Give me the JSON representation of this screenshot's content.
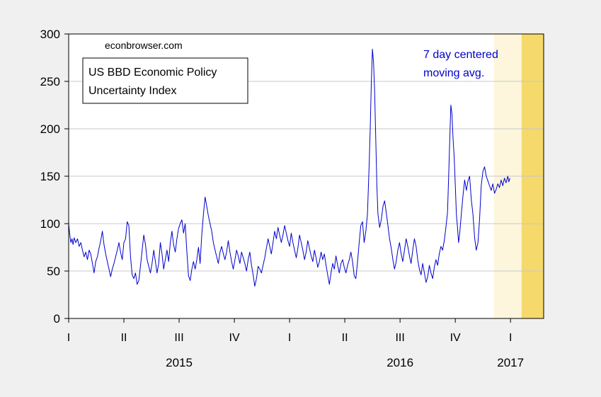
{
  "chart_data": {
    "type": "line",
    "title": "",
    "legend_box": [
      "US BBD Economic Policy",
      "Uncertainty Index"
    ],
    "legend_placement": "top-left",
    "source": "econbrowser.com",
    "annotation": [
      "7 day centered",
      "moving avg."
    ],
    "ylim": [
      0,
      300
    ],
    "yticks": [
      0,
      50,
      100,
      150,
      200,
      250,
      300
    ],
    "grid": true,
    "quarter_labels": [
      "I",
      "II",
      "III",
      "IV",
      "I",
      "II",
      "III",
      "IV",
      "I"
    ],
    "year_labels": [
      {
        "label": "2015",
        "quarter_index": 2
      },
      {
        "label": "2016",
        "quarter_index": 6
      },
      {
        "label": "2017",
        "quarter_index": 8
      }
    ],
    "x_range_quarters": [
      0,
      8.6
    ],
    "shaded_regions": [
      {
        "from_q": 7.7,
        "to_q": 8.2,
        "color": "#fdf6dc"
      },
      {
        "from_q": 8.2,
        "to_q": 8.6,
        "color": "#f5d96b"
      }
    ],
    "series": [
      {
        "color": "#0000cc",
        "points": [
          [
            0.0,
            100
          ],
          [
            0.02,
            88
          ],
          [
            0.04,
            80
          ],
          [
            0.06,
            84
          ],
          [
            0.08,
            78
          ],
          [
            0.1,
            85
          ],
          [
            0.13,
            80
          ],
          [
            0.16,
            84
          ],
          [
            0.19,
            76
          ],
          [
            0.22,
            80
          ],
          [
            0.25,
            72
          ],
          [
            0.28,
            65
          ],
          [
            0.31,
            70
          ],
          [
            0.34,
            62
          ],
          [
            0.37,
            72
          ],
          [
            0.4,
            68
          ],
          [
            0.43,
            58
          ],
          [
            0.46,
            48
          ],
          [
            0.49,
            60
          ],
          [
            0.52,
            65
          ],
          [
            0.55,
            74
          ],
          [
            0.58,
            82
          ],
          [
            0.61,
            92
          ],
          [
            0.64,
            78
          ],
          [
            0.67,
            68
          ],
          [
            0.7,
            60
          ],
          [
            0.73,
            52
          ],
          [
            0.76,
            44
          ],
          [
            0.79,
            52
          ],
          [
            0.82,
            58
          ],
          [
            0.85,
            65
          ],
          [
            0.88,
            72
          ],
          [
            0.91,
            80
          ],
          [
            0.94,
            70
          ],
          [
            0.97,
            62
          ],
          [
            1.0,
            80
          ],
          [
            1.03,
            84
          ],
          [
            1.06,
            102
          ],
          [
            1.09,
            98
          ],
          [
            1.12,
            65
          ],
          [
            1.15,
            46
          ],
          [
            1.18,
            42
          ],
          [
            1.21,
            48
          ],
          [
            1.24,
            36
          ],
          [
            1.27,
            40
          ],
          [
            1.3,
            55
          ],
          [
            1.33,
            72
          ],
          [
            1.36,
            88
          ],
          [
            1.39,
            78
          ],
          [
            1.42,
            62
          ],
          [
            1.45,
            55
          ],
          [
            1.48,
            48
          ],
          [
            1.51,
            58
          ],
          [
            1.54,
            72
          ],
          [
            1.57,
            60
          ],
          [
            1.6,
            48
          ],
          [
            1.63,
            58
          ],
          [
            1.66,
            80
          ],
          [
            1.69,
            68
          ],
          [
            1.72,
            52
          ],
          [
            1.75,
            62
          ],
          [
            1.78,
            72
          ],
          [
            1.81,
            60
          ],
          [
            1.84,
            80
          ],
          [
            1.87,
            92
          ],
          [
            1.9,
            78
          ],
          [
            1.93,
            70
          ],
          [
            1.96,
            84
          ],
          [
            1.99,
            95
          ],
          [
            2.02,
            100
          ],
          [
            2.05,
            104
          ],
          [
            2.08,
            90
          ],
          [
            2.11,
            100
          ],
          [
            2.14,
            70
          ],
          [
            2.17,
            45
          ],
          [
            2.2,
            40
          ],
          [
            2.23,
            52
          ],
          [
            2.26,
            60
          ],
          [
            2.29,
            52
          ],
          [
            2.32,
            62
          ],
          [
            2.35,
            75
          ],
          [
            2.38,
            58
          ],
          [
            2.41,
            88
          ],
          [
            2.44,
            110
          ],
          [
            2.47,
            128
          ],
          [
            2.5,
            118
          ],
          [
            2.53,
            108
          ],
          [
            2.56,
            100
          ],
          [
            2.59,
            92
          ],
          [
            2.62,
            80
          ],
          [
            2.65,
            72
          ],
          [
            2.68,
            65
          ],
          [
            2.71,
            58
          ],
          [
            2.74,
            70
          ],
          [
            2.77,
            76
          ],
          [
            2.8,
            68
          ],
          [
            2.83,
            62
          ],
          [
            2.86,
            70
          ],
          [
            2.89,
            82
          ],
          [
            2.92,
            70
          ],
          [
            2.95,
            60
          ],
          [
            2.98,
            52
          ],
          [
            3.01,
            62
          ],
          [
            3.04,
            72
          ],
          [
            3.07,
            66
          ],
          [
            3.1,
            58
          ],
          [
            3.13,
            70
          ],
          [
            3.16,
            64
          ],
          [
            3.19,
            58
          ],
          [
            3.22,
            50
          ],
          [
            3.25,
            62
          ],
          [
            3.28,
            70
          ],
          [
            3.31,
            56
          ],
          [
            3.34,
            46
          ],
          [
            3.37,
            34
          ],
          [
            3.4,
            42
          ],
          [
            3.43,
            55
          ],
          [
            3.46,
            52
          ],
          [
            3.49,
            48
          ],
          [
            3.52,
            56
          ],
          [
            3.55,
            64
          ],
          [
            3.58,
            74
          ],
          [
            3.61,
            84
          ],
          [
            3.64,
            76
          ],
          [
            3.67,
            68
          ],
          [
            3.7,
            80
          ],
          [
            3.73,
            92
          ],
          [
            3.76,
            84
          ],
          [
            3.79,
            96
          ],
          [
            3.82,
            88
          ],
          [
            3.85,
            80
          ],
          [
            3.88,
            88
          ],
          [
            3.91,
            98
          ],
          [
            3.94,
            90
          ],
          [
            3.97,
            82
          ],
          [
            4.0,
            76
          ],
          [
            4.03,
            90
          ],
          [
            4.06,
            80
          ],
          [
            4.09,
            72
          ],
          [
            4.12,
            64
          ],
          [
            4.15,
            74
          ],
          [
            4.18,
            88
          ],
          [
            4.21,
            80
          ],
          [
            4.24,
            72
          ],
          [
            4.27,
            62
          ],
          [
            4.3,
            70
          ],
          [
            4.33,
            82
          ],
          [
            4.36,
            74
          ],
          [
            4.39,
            66
          ],
          [
            4.42,
            60
          ],
          [
            4.45,
            72
          ],
          [
            4.48,
            64
          ],
          [
            4.51,
            54
          ],
          [
            4.54,
            60
          ],
          [
            4.57,
            70
          ],
          [
            4.6,
            62
          ],
          [
            4.63,
            68
          ],
          [
            4.66,
            56
          ],
          [
            4.69,
            46
          ],
          [
            4.72,
            36
          ],
          [
            4.75,
            48
          ],
          [
            4.78,
            58
          ],
          [
            4.81,
            52
          ],
          [
            4.84,
            66
          ],
          [
            4.87,
            56
          ],
          [
            4.9,
            48
          ],
          [
            4.93,
            58
          ],
          [
            4.96,
            62
          ],
          [
            4.99,
            54
          ],
          [
            5.02,
            48
          ],
          [
            5.05,
            56
          ],
          [
            5.08,
            62
          ],
          [
            5.11,
            70
          ],
          [
            5.14,
            60
          ],
          [
            5.17,
            45
          ],
          [
            5.2,
            42
          ],
          [
            5.23,
            60
          ],
          [
            5.26,
            80
          ],
          [
            5.29,
            98
          ],
          [
            5.32,
            102
          ],
          [
            5.35,
            80
          ],
          [
            5.38,
            92
          ],
          [
            5.41,
            110
          ],
          [
            5.44,
            160
          ],
          [
            5.46,
            200
          ],
          [
            5.48,
            250
          ],
          [
            5.5,
            284
          ],
          [
            5.52,
            270
          ],
          [
            5.54,
            240
          ],
          [
            5.56,
            190
          ],
          [
            5.58,
            140
          ],
          [
            5.6,
            110
          ],
          [
            5.63,
            96
          ],
          [
            5.66,
            104
          ],
          [
            5.69,
            118
          ],
          [
            5.72,
            124
          ],
          [
            5.75,
            112
          ],
          [
            5.78,
            98
          ],
          [
            5.81,
            84
          ],
          [
            5.84,
            74
          ],
          [
            5.87,
            62
          ],
          [
            5.9,
            52
          ],
          [
            5.93,
            60
          ],
          [
            5.96,
            72
          ],
          [
            5.99,
            80
          ],
          [
            6.02,
            68
          ],
          [
            6.05,
            60
          ],
          [
            6.08,
            72
          ],
          [
            6.11,
            84
          ],
          [
            6.14,
            76
          ],
          [
            6.17,
            66
          ],
          [
            6.2,
            58
          ],
          [
            6.23,
            72
          ],
          [
            6.26,
            84
          ],
          [
            6.29,
            76
          ],
          [
            6.32,
            62
          ],
          [
            6.35,
            52
          ],
          [
            6.38,
            46
          ],
          [
            6.41,
            58
          ],
          [
            6.44,
            48
          ],
          [
            6.47,
            38
          ],
          [
            6.5,
            44
          ],
          [
            6.53,
            56
          ],
          [
            6.56,
            48
          ],
          [
            6.59,
            42
          ],
          [
            6.62,
            54
          ],
          [
            6.65,
            62
          ],
          [
            6.68,
            56
          ],
          [
            6.71,
            68
          ],
          [
            6.74,
            76
          ],
          [
            6.77,
            72
          ],
          [
            6.8,
            82
          ],
          [
            6.83,
            96
          ],
          [
            6.86,
            112
          ],
          [
            6.88,
            150
          ],
          [
            6.9,
            190
          ],
          [
            6.92,
            225
          ],
          [
            6.94,
            215
          ],
          [
            6.96,
            190
          ],
          [
            6.98,
            170
          ],
          [
            7.0,
            140
          ],
          [
            7.02,
            110
          ],
          [
            7.04,
            96
          ],
          [
            7.06,
            80
          ],
          [
            7.08,
            90
          ],
          [
            7.11,
            110
          ],
          [
            7.14,
            130
          ],
          [
            7.17,
            146
          ],
          [
            7.2,
            135
          ],
          [
            7.23,
            145
          ],
          [
            7.26,
            150
          ],
          [
            7.29,
            125
          ],
          [
            7.32,
            110
          ],
          [
            7.35,
            85
          ],
          [
            7.38,
            72
          ],
          [
            7.41,
            80
          ],
          [
            7.44,
            105
          ],
          [
            7.47,
            140
          ],
          [
            7.5,
            155
          ],
          [
            7.53,
            160
          ],
          [
            7.56,
            150
          ],
          [
            7.59,
            145
          ],
          [
            7.62,
            140
          ],
          [
            7.65,
            135
          ],
          [
            7.68,
            142
          ],
          [
            7.71,
            132
          ],
          [
            7.74,
            136
          ],
          [
            7.77,
            142
          ],
          [
            7.8,
            138
          ],
          [
            7.83,
            146
          ],
          [
            7.86,
            140
          ],
          [
            7.89,
            148
          ],
          [
            7.92,
            143
          ],
          [
            7.95,
            150
          ],
          [
            7.97,
            144
          ],
          [
            7.99,
            148
          ]
        ]
      }
    ]
  }
}
